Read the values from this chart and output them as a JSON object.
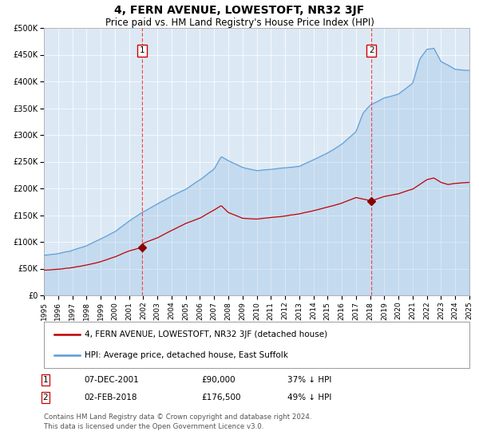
{
  "title": "4, FERN AVENUE, LOWESTOFT, NR32 3JF",
  "subtitle": "Price paid vs. HM Land Registry's House Price Index (HPI)",
  "title_fontsize": 10,
  "subtitle_fontsize": 8.5,
  "background_color": "#ffffff",
  "plot_bg_color": "#dce9f5",
  "ylim": [
    0,
    500000
  ],
  "yticks": [
    0,
    50000,
    100000,
    150000,
    200000,
    250000,
    300000,
    350000,
    400000,
    450000,
    500000
  ],
  "ytick_labels": [
    "£0",
    "£50K",
    "£100K",
    "£150K",
    "£200K",
    "£250K",
    "£300K",
    "£350K",
    "£400K",
    "£450K",
    "£500K"
  ],
  "xmin_year": 1995,
  "xmax_year": 2025,
  "xtick_years": [
    1995,
    1996,
    1997,
    1998,
    1999,
    2000,
    2001,
    2002,
    2003,
    2004,
    2005,
    2006,
    2007,
    2008,
    2009,
    2010,
    2011,
    2012,
    2013,
    2014,
    2015,
    2016,
    2017,
    2018,
    2019,
    2020,
    2021,
    2022,
    2023,
    2024,
    2025
  ],
  "hpi_color": "#5b9bd5",
  "price_color": "#c00000",
  "marker_color": "#8b0000",
  "dashed_line_color": "#e05050",
  "sale1_year": 2001.93,
  "sale1_price": 90000,
  "sale1_label": "1",
  "sale2_year": 2018.09,
  "sale2_price": 176500,
  "sale2_label": "2",
  "legend_label_price": "4, FERN AVENUE, LOWESTOFT, NR32 3JF (detached house)",
  "legend_label_hpi": "HPI: Average price, detached house, East Suffolk",
  "table_row1": [
    "1",
    "07-DEC-2001",
    "£90,000",
    "37% ↓ HPI"
  ],
  "table_row2": [
    "2",
    "02-FEB-2018",
    "£176,500",
    "49% ↓ HPI"
  ],
  "footer": "Contains HM Land Registry data © Crown copyright and database right 2024.\nThis data is licensed under the Open Government Licence v3.0."
}
